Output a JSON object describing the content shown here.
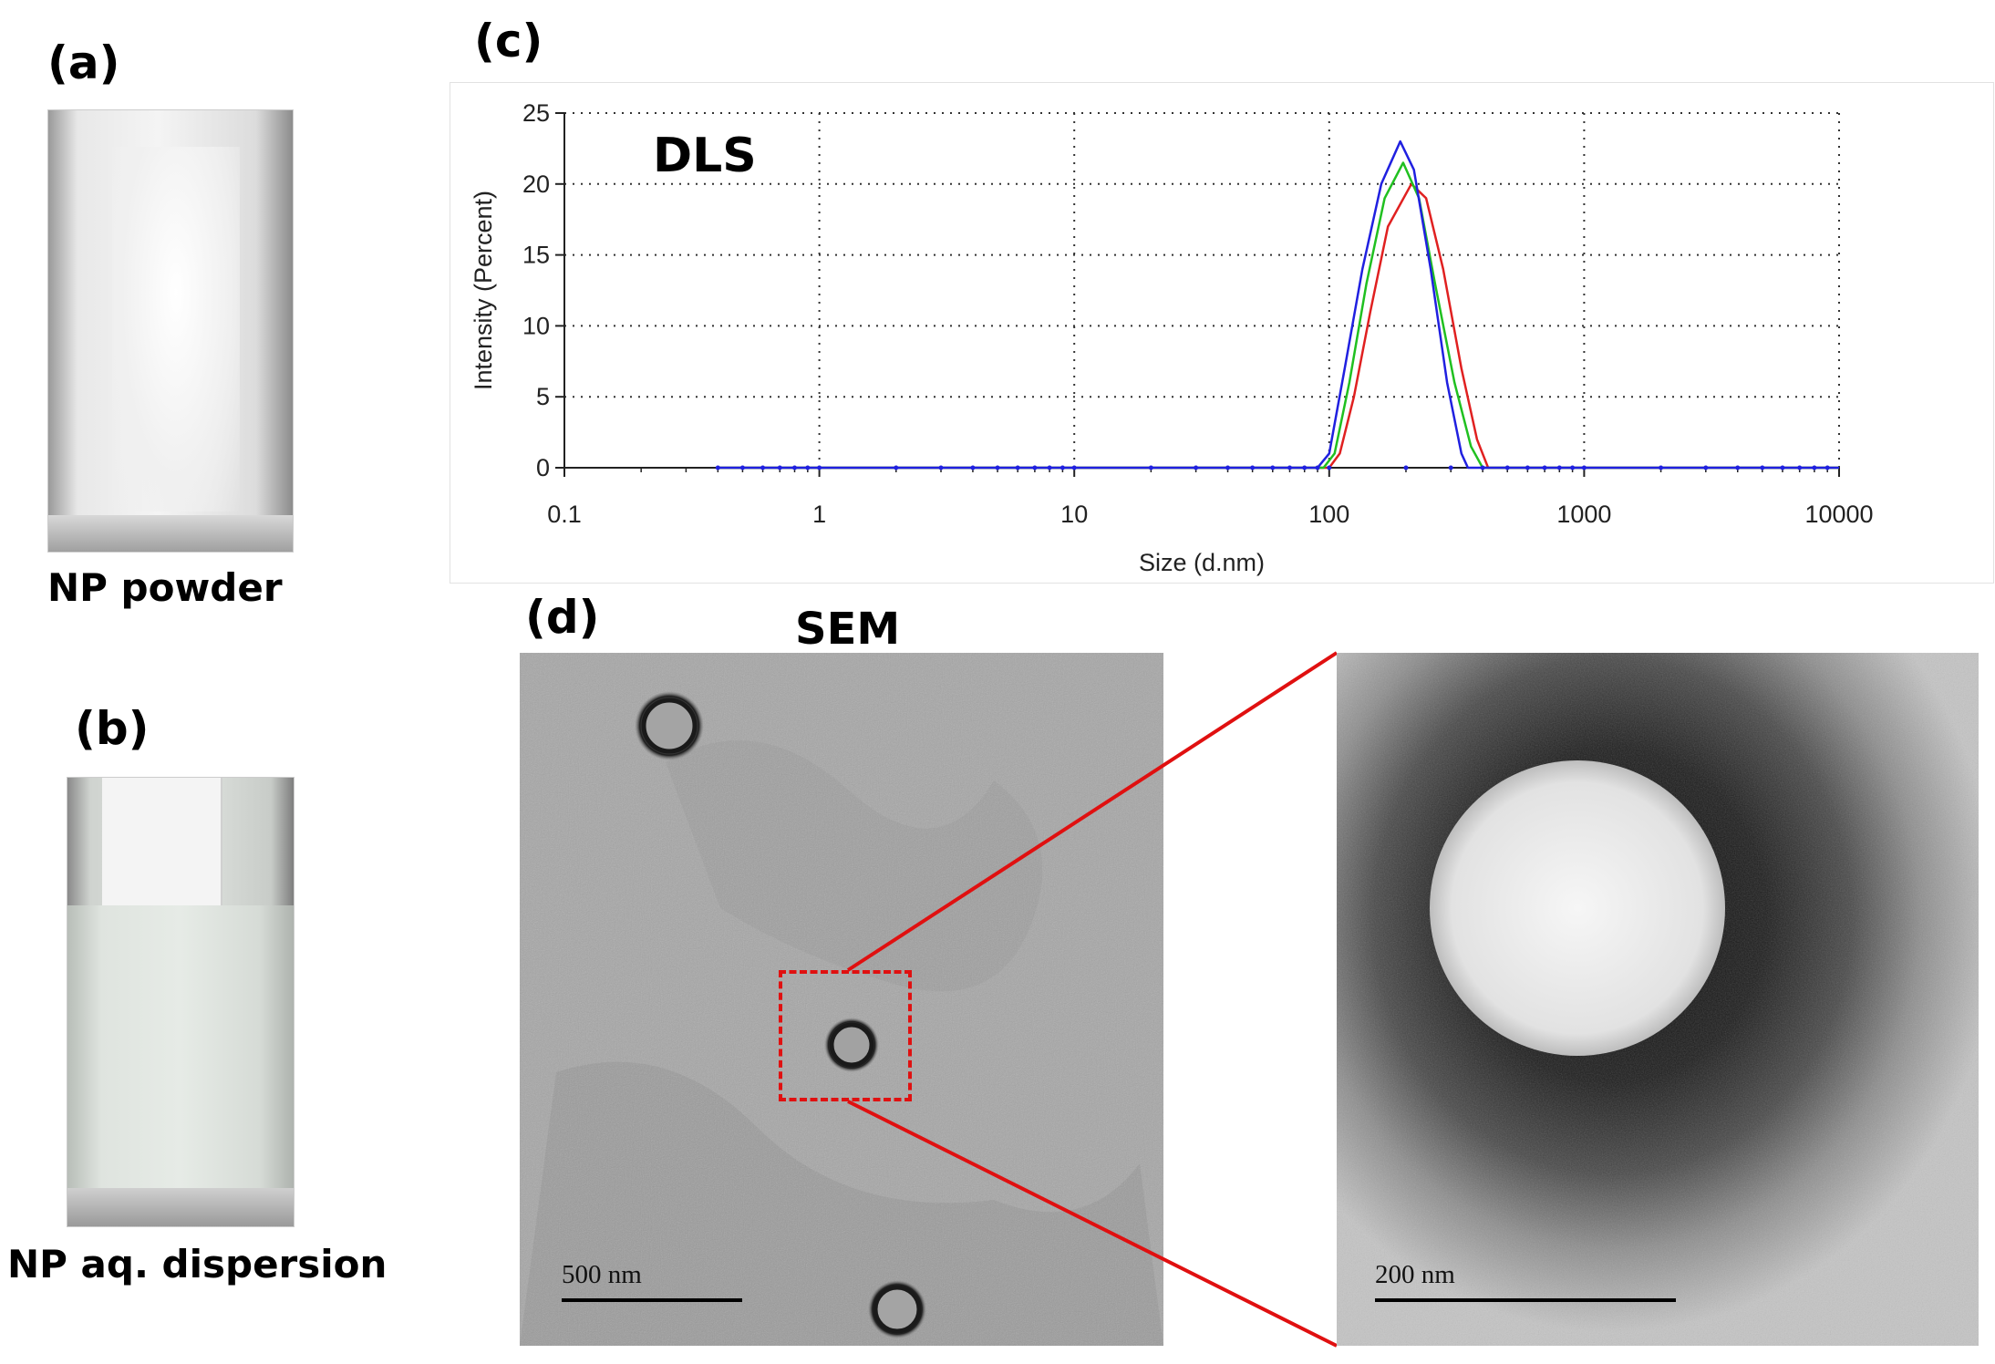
{
  "panels": {
    "a": {
      "letter": "(a)",
      "caption": "NP powder"
    },
    "b": {
      "letter": "(b)",
      "caption": "NP aq. dispersion"
    },
    "c": {
      "letter": "(c)",
      "label": "DLS"
    },
    "d": {
      "letter": "(d)",
      "label": "SEM",
      "scale_left": "500 nm",
      "scale_right": "200 nm"
    }
  },
  "chart_data": {
    "type": "line",
    "xlabel": "Size (d.nm)",
    "ylabel": "Intensity (Percent)",
    "xscale": "log",
    "xlim": [
      0.1,
      10000
    ],
    "ylim": [
      0,
      25
    ],
    "xticks": [
      {
        "value": 0.1,
        "label": "0.1"
      },
      {
        "value": 1,
        "label": "1"
      },
      {
        "value": 10,
        "label": "10"
      },
      {
        "value": 100,
        "label": "100"
      },
      {
        "value": 1000,
        "label": "1000"
      },
      {
        "value": 10000,
        "label": "10000"
      }
    ],
    "yticks": [
      {
        "value": 0,
        "label": "0"
      },
      {
        "value": 5,
        "label": "5"
      },
      {
        "value": 10,
        "label": "10"
      },
      {
        "value": 15,
        "label": "15"
      },
      {
        "value": 20,
        "label": "20"
      },
      {
        "value": 25,
        "label": "25"
      }
    ],
    "grid": true,
    "series": [
      {
        "color": "#e02020",
        "x": [
          0.4,
          100,
          110,
          125,
          145,
          170,
          210,
          240,
          280,
          330,
          380,
          420,
          10000
        ],
        "y": [
          0,
          0,
          1,
          5,
          11,
          17,
          20,
          19,
          14,
          7,
          2,
          0,
          0
        ]
      },
      {
        "color": "#20c020",
        "x": [
          0.4,
          95,
          105,
          120,
          140,
          165,
          195,
          225,
          260,
          310,
          360,
          400,
          10000
        ],
        "y": [
          0,
          0,
          1,
          6,
          13,
          19,
          21.5,
          19,
          13,
          6,
          1.5,
          0,
          0
        ]
      },
      {
        "color": "#2020e0",
        "x": [
          0.4,
          90,
          100,
          115,
          135,
          160,
          190,
          215,
          250,
          290,
          330,
          350,
          10000
        ],
        "y": [
          0,
          0,
          1,
          7,
          14,
          20,
          23,
          21,
          14,
          6,
          1,
          0,
          0
        ]
      }
    ]
  }
}
